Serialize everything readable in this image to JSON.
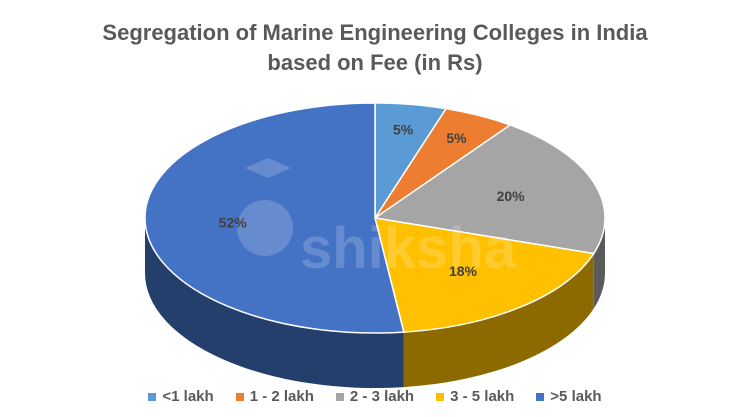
{
  "chart_data": {
    "type": "pie",
    "title_lines": [
      "Segregation of Marine Engineering Colleges in India",
      "based on Fee (in Rs)"
    ],
    "slices": [
      {
        "label": "<1 lakh",
        "value": 5,
        "data_label": "5%",
        "color": "#5B9BD5"
      },
      {
        "label": "1 - 2 lakh",
        "value": 5,
        "data_label": "5%",
        "color": "#ED7D31"
      },
      {
        "label": "2 - 3 lakh",
        "value": 20,
        "data_label": "20%",
        "color": "#A5A5A5"
      },
      {
        "label": "3 - 5 lakh",
        "value": 18,
        "data_label": "18%",
        "color": "#FFC000"
      },
      {
        "label": ">5 lakh",
        "value": 52,
        "data_label": "52%",
        "color": "#4472C4"
      }
    ],
    "legend_position": "bottom",
    "style": "3d"
  },
  "watermark": "shiksha"
}
